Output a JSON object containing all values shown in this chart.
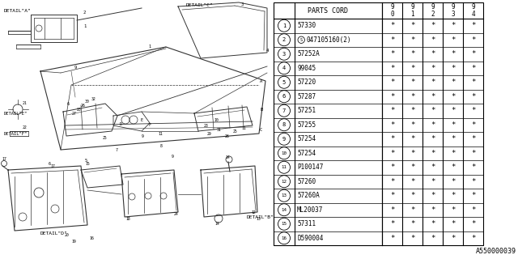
{
  "diagram_label": "A550000039",
  "table": {
    "header_col1": "PARTS CORD",
    "year_cols": [
      "9\n0",
      "9\n1",
      "9\n2",
      "9\n3",
      "9\n4"
    ],
    "rows": [
      {
        "num": "1",
        "part": "57330",
        "has_s": false,
        "marks": [
          "*",
          "*",
          "*",
          "*",
          "*"
        ]
      },
      {
        "num": "2",
        "part": "047105160(2)",
        "has_s": true,
        "marks": [
          "*",
          "*",
          "*",
          "*",
          "*"
        ]
      },
      {
        "num": "3",
        "part": "57252A",
        "has_s": false,
        "marks": [
          "*",
          "*",
          "*",
          "*",
          "*"
        ]
      },
      {
        "num": "4",
        "part": "99045",
        "has_s": false,
        "marks": [
          "*",
          "*",
          "*",
          "*",
          "*"
        ]
      },
      {
        "num": "5",
        "part": "57220",
        "has_s": false,
        "marks": [
          "*",
          "*",
          "*",
          "*",
          "*"
        ]
      },
      {
        "num": "6",
        "part": "57287",
        "has_s": false,
        "marks": [
          "*",
          "*",
          "*",
          "*",
          "*"
        ]
      },
      {
        "num": "7",
        "part": "57251",
        "has_s": false,
        "marks": [
          "*",
          "*",
          "*",
          "*",
          "*"
        ]
      },
      {
        "num": "8",
        "part": "57255",
        "has_s": false,
        "marks": [
          "*",
          "*",
          "*",
          "*",
          "*"
        ]
      },
      {
        "num": "9",
        "part": "57254",
        "has_s": false,
        "marks": [
          "*",
          "*",
          "*",
          "*",
          "*"
        ]
      },
      {
        "num": "10",
        "part": "57254",
        "has_s": false,
        "marks": [
          "*",
          "*",
          "*",
          "*",
          "*"
        ]
      },
      {
        "num": "11",
        "part": "P100147",
        "has_s": false,
        "marks": [
          "*",
          "*",
          "*",
          "*",
          "*"
        ]
      },
      {
        "num": "12",
        "part": "57260",
        "has_s": false,
        "marks": [
          "*",
          "*",
          "*",
          "*",
          "*"
        ]
      },
      {
        "num": "13",
        "part": "57260A",
        "has_s": false,
        "marks": [
          "*",
          "*",
          "*",
          "*",
          "*"
        ]
      },
      {
        "num": "14",
        "part": "ML20037",
        "has_s": false,
        "marks": [
          "*",
          "*",
          "*",
          "*",
          "*"
        ]
      },
      {
        "num": "15",
        "part": "57311",
        "has_s": false,
        "marks": [
          "*",
          "*",
          "*",
          "*",
          "*"
        ]
      },
      {
        "num": "16",
        "part": "D590004",
        "has_s": false,
        "marks": [
          "*",
          "*",
          "*",
          "*",
          "*"
        ]
      }
    ]
  },
  "bg_color": "#ffffff"
}
